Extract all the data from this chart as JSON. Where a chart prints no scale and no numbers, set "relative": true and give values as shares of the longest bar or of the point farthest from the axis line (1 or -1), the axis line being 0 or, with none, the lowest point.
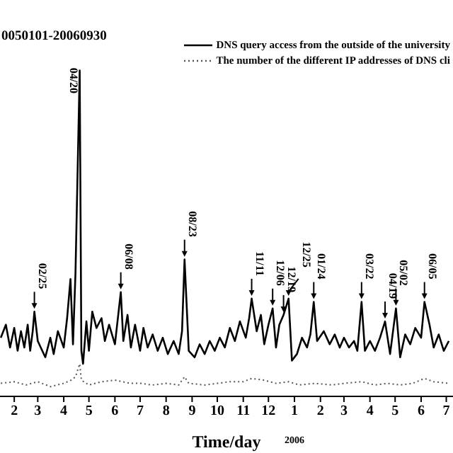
{
  "chart_data": {
    "type": "line",
    "title": "0050101-20060930",
    "xlabel": "Time/day",
    "relative": true,
    "legend": "top right",
    "marker": "none",
    "xlim": [
      "2005-01-15",
      "2006-07-09"
    ],
    "xticks": [
      {
        "value": "2005-02",
        "label": "2"
      },
      {
        "value": "2005-03",
        "label": "3"
      },
      {
        "value": "2005-04",
        "label": "4"
      },
      {
        "value": "2005-05",
        "label": "5"
      },
      {
        "value": "2005-06",
        "label": "6"
      },
      {
        "value": "2005-07",
        "label": "7"
      },
      {
        "value": "2005-08",
        "label": "8"
      },
      {
        "value": "2005-09",
        "label": "9"
      },
      {
        "value": "2005-10",
        "label": "10"
      },
      {
        "value": "2005-11",
        "label": "11"
      },
      {
        "value": "2005-12",
        "label": "12"
      },
      {
        "value": "2006-01",
        "label": "1"
      },
      {
        "value": "2006-02",
        "label": "2"
      },
      {
        "value": "2006-03",
        "label": "3"
      },
      {
        "value": "2006-04",
        "label": "4"
      },
      {
        "value": "2006-05",
        "label": "5"
      },
      {
        "value": "2006-06",
        "label": "6"
      },
      {
        "value": "2006-07",
        "label": "7"
      }
    ],
    "series": [
      {
        "name": "DNS query access from the outside of the university",
        "color": "#000000",
        "line_style": "solid",
        "x": [
          "2005-01-16",
          "2005-01-22",
          "2005-01-27",
          "2005-02-01",
          "2005-02-05",
          "2005-02-09",
          "2005-02-13",
          "2005-02-17",
          "2005-02-20",
          "2005-02-23",
          "2005-02-25",
          "2005-03-01",
          "2005-03-10",
          "2005-03-16",
          "2005-03-20",
          "2005-03-25",
          "2005-04-01",
          "2005-04-05",
          "2005-04-09",
          "2005-04-12",
          "2005-04-15",
          "2005-04-20",
          "2005-04-22",
          "2005-04-24",
          "2005-04-28",
          "2005-05-01",
          "2005-05-05",
          "2005-05-10",
          "2005-05-16",
          "2005-05-20",
          "2005-05-25",
          "2005-06-01",
          "2005-06-08",
          "2005-06-11",
          "2005-06-16",
          "2005-06-20",
          "2005-06-25",
          "2005-07-01",
          "2005-07-05",
          "2005-07-10",
          "2005-07-16",
          "2005-07-22",
          "2005-07-28",
          "2005-08-03",
          "2005-08-10",
          "2005-08-16",
          "2005-08-20",
          "2005-08-23",
          "2005-08-28",
          "2005-09-04",
          "2005-09-10",
          "2005-09-16",
          "2005-09-22",
          "2005-09-28",
          "2005-10-04",
          "2005-10-10",
          "2005-10-16",
          "2005-10-22",
          "2005-10-28",
          "2005-11-04",
          "2005-11-08",
          "2005-11-11",
          "2005-11-17",
          "2005-11-22",
          "2005-11-26",
          "2005-12-01",
          "2005-12-06",
          "2005-12-10",
          "2005-12-14",
          "2005-12-19",
          "2005-12-25",
          "2005-12-29",
          "2006-01-04",
          "2006-01-10",
          "2006-01-16",
          "2006-01-20",
          "2006-01-24",
          "2006-01-28",
          "2006-02-05",
          "2006-02-12",
          "2006-02-18",
          "2006-02-24",
          "2006-03-01",
          "2006-03-07",
          "2006-03-13",
          "2006-03-17",
          "2006-03-22",
          "2006-03-26",
          "2006-04-01",
          "2006-04-07",
          "2006-04-13",
          "2006-04-19",
          "2006-04-25",
          "2006-05-02",
          "2006-05-07",
          "2006-05-13",
          "2006-05-19",
          "2006-05-25",
          "2006-06-01",
          "2006-06-05",
          "2006-06-11",
          "2006-06-16",
          "2006-06-22",
          "2006-06-28",
          "2006-07-04"
        ],
        "values": [
          0.18,
          0.22,
          0.15,
          0.21,
          0.14,
          0.2,
          0.15,
          0.22,
          0.14,
          0.2,
          0.26,
          0.17,
          0.12,
          0.18,
          0.13,
          0.2,
          0.15,
          0.24,
          0.36,
          0.16,
          0.38,
          1,
          0.14,
          0.1,
          0.23,
          0.14,
          0.26,
          0.21,
          0.24,
          0.17,
          0.22,
          0.16,
          0.32,
          0.17,
          0.25,
          0.15,
          0.22,
          0.14,
          0.21,
          0.15,
          0.19,
          0.14,
          0.18,
          0.13,
          0.17,
          0.13,
          0.2,
          0.42,
          0.14,
          0.12,
          0.16,
          0.13,
          0.17,
          0.14,
          0.18,
          0.15,
          0.21,
          0.17,
          0.23,
          0.18,
          0.24,
          0.3,
          0.2,
          0.25,
          0.16,
          0.22,
          0.27,
          0.15,
          0.22,
          0.25,
          0.3,
          0.11,
          0.13,
          0.18,
          0.15,
          0.19,
          0.29,
          0.17,
          0.2,
          0.16,
          0.19,
          0.15,
          0.18,
          0.15,
          0.17,
          0.14,
          0.29,
          0.14,
          0.17,
          0.14,
          0.18,
          0.23,
          0.13,
          0.27,
          0.12,
          0.19,
          0.16,
          0.21,
          0.18,
          0.29,
          0.22,
          0.15,
          0.19,
          0.14,
          0.17
        ]
      },
      {
        "name": "The number of the different IP addresses of DNS cli",
        "color": "#555555",
        "line_style": "dotted",
        "x": [
          "2005-01-16",
          "2005-02-01",
          "2005-02-15",
          "2005-03-01",
          "2005-03-16",
          "2005-04-01",
          "2005-04-10",
          "2005-04-15",
          "2005-04-20",
          "2005-04-22",
          "2005-05-01",
          "2005-05-16",
          "2005-06-01",
          "2005-06-10",
          "2005-06-19",
          "2005-07-01",
          "2005-07-16",
          "2005-08-01",
          "2005-08-16",
          "2005-08-23",
          "2005-08-28",
          "2005-09-16",
          "2005-10-01",
          "2005-10-16",
          "2005-11-01",
          "2005-11-11",
          "2005-11-25",
          "2005-12-10",
          "2005-12-25",
          "2006-01-07",
          "2006-01-25",
          "2006-02-15",
          "2006-03-01",
          "2006-03-22",
          "2006-04-07",
          "2006-04-22",
          "2006-05-07",
          "2006-05-22",
          "2006-06-05",
          "2006-06-16",
          "2006-07-04"
        ],
        "values": [
          0.04,
          0.045,
          0.035,
          0.045,
          0.03,
          0.04,
          0.05,
          0.06,
          0.1,
          0.05,
          0.035,
          0.045,
          0.05,
          0.045,
          0.04,
          0.04,
          0.035,
          0.04,
          0.035,
          0.06,
          0.04,
          0.035,
          0.04,
          0.045,
          0.045,
          0.055,
          0.05,
          0.04,
          0.045,
          0.035,
          0.04,
          0.035,
          0.04,
          0.045,
          0.035,
          0.04,
          0.035,
          0.04,
          0.055,
          0.045,
          0.04
        ]
      }
    ],
    "annotations": [
      {
        "text": "02/25",
        "x": "2005-02-25",
        "y": 0.26
      },
      {
        "text": "04/20",
        "x": "2005-04-20",
        "y": 1
      },
      {
        "text": "06/08",
        "x": "2005-06-08",
        "y": 0.32
      },
      {
        "text": "08/23",
        "x": "2005-08-23",
        "y": 0.42
      },
      {
        "text": "11/11",
        "x": "2005-11-11",
        "y": 0.3
      },
      {
        "text": "12/06",
        "x": "2005-12-06",
        "y": 0.27
      },
      {
        "text": "12/19",
        "x": "2005-12-19",
        "y": 0.25
      },
      {
        "text": "12/25",
        "x": "2005-12-25",
        "y": 0.3
      },
      {
        "text": "01/24",
        "x": "2006-01-24",
        "y": 0.29
      },
      {
        "text": "03/22",
        "x": "2006-03-22",
        "y": 0.29
      },
      {
        "text": "04/19",
        "x": "2006-04-19",
        "y": 0.23
      },
      {
        "text": "05/02",
        "x": "2006-05-02",
        "y": 0.27
      },
      {
        "text": "06/05",
        "x": "2006-06-05",
        "y": 0.29
      },
      "2006"
    ]
  }
}
